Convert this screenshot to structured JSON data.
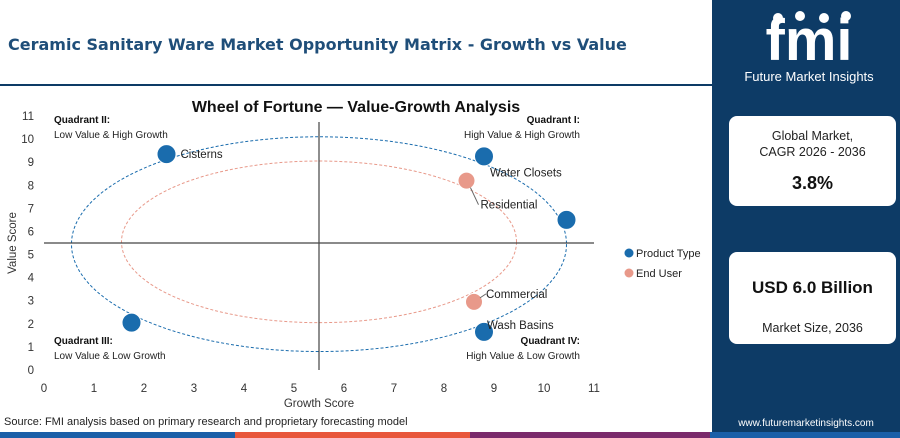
{
  "page_title": "Ceramic Sanitary Ware Market Opportunity Matrix - Growth vs Value",
  "brand": {
    "logo_text": "fmi",
    "tagline": "Future Market Insights",
    "url": "www.futuremarketinsights.com"
  },
  "colors": {
    "navy": "#0d3b66",
    "title_blue": "#1f4e79",
    "product_type": "#1a6cad",
    "end_user": "#e8998a",
    "footer_segments": [
      "#1a5fa8",
      "#e8573c",
      "#7a2a6b",
      "#1a5fa8"
    ]
  },
  "cards": [
    {
      "label_line1": "Global Market,",
      "label_line2": "CAGR 2026 - 2036",
      "value": "3.8%"
    },
    {
      "value": "USD 6.0 Billion",
      "label_line1": "Market Size, 2036"
    }
  ],
  "footer": {
    "source": "Source: FMI analysis based on primary research and proprietary forecasting model"
  },
  "chart_data": {
    "type": "scatter",
    "title": "Wheel of Fortune — Value-Growth Analysis",
    "xlabel": "Growth Score",
    "ylabel": "Value Score",
    "xlim": [
      0,
      11
    ],
    "ylim": [
      0,
      11
    ],
    "x_ticks": [
      "0",
      "1",
      "2",
      "3",
      "4",
      "5",
      "6",
      "7",
      "8",
      "9",
      "10",
      "11"
    ],
    "y_ticks": [
      "0",
      "1",
      "2",
      "3",
      "4",
      "5",
      "6",
      "7",
      "8",
      "9",
      "10",
      "11"
    ],
    "divider": {
      "x": 5.5,
      "y": 5.5
    },
    "grid": false,
    "legend_position": "right",
    "quadrants": [
      {
        "id": "q2",
        "title": "Quadrant II:",
        "subtitle": "Low Value & High Growth",
        "corner": "top-left"
      },
      {
        "id": "q1",
        "title": "Quadrant I:",
        "subtitle": "High Value & High Growth",
        "corner": "top-right"
      },
      {
        "id": "q3",
        "title": "Quadrant III:",
        "subtitle": "Low Value & Low Growth",
        "corner": "bottom-left"
      },
      {
        "id": "q4",
        "title": "Quadrant IV:",
        "subtitle": "High Value & Low Growth",
        "corner": "bottom-right"
      }
    ],
    "ellipses": [
      {
        "series": "Product Type",
        "cx": 5.5,
        "cy": 5.45,
        "rx": 4.95,
        "ry": 4.65
      },
      {
        "series": "End User",
        "cx": 5.5,
        "cy": 5.55,
        "rx": 3.95,
        "ry": 3.5
      }
    ],
    "series": [
      {
        "name": "Product Type",
        "color": "#1a6cad",
        "points": [
          {
            "label": "Cisterns",
            "x": 2.45,
            "y": 9.35
          },
          {
            "label": "Water Closets",
            "x": 8.8,
            "y": 9.25
          },
          {
            "label": "",
            "x": 10.45,
            "y": 6.5
          },
          {
            "label": "",
            "x": 1.75,
            "y": 2.05
          },
          {
            "label": "Wash Basins",
            "x": 8.8,
            "y": 1.65
          }
        ]
      },
      {
        "name": "End User",
        "color": "#e8998a",
        "points": [
          {
            "label": "Residential",
            "x": 8.45,
            "y": 8.2
          },
          {
            "label": "Commercial",
            "x": 8.6,
            "y": 2.95
          }
        ]
      }
    ]
  }
}
